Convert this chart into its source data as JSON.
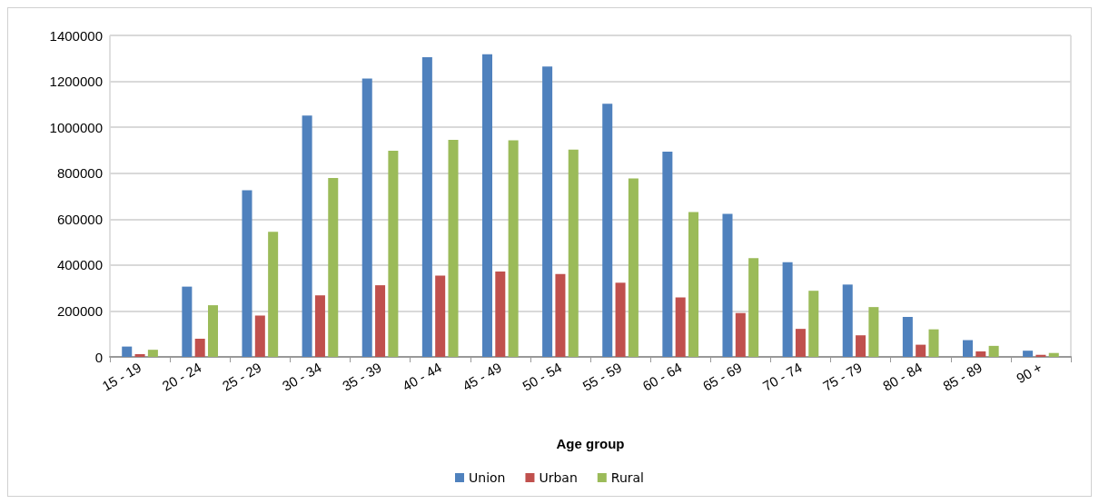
{
  "chart_data": {
    "type": "bar",
    "xlabel": "Age group",
    "categories": [
      "15 - 19",
      "20 - 24",
      "25 - 29",
      "30 - 34",
      "35 - 39",
      "40 - 44",
      "45 - 49",
      "50 - 54",
      "55 - 59",
      "60 - 64",
      "65 - 69",
      "70 - 74",
      "75 - 79",
      "80 - 84",
      "85 - 89",
      "90 +"
    ],
    "series": [
      {
        "name": "Union",
        "color": "#4f81bd",
        "values": [
          45000,
          306000,
          726000,
          1051000,
          1212000,
          1305000,
          1318000,
          1265000,
          1102000,
          894000,
          623000,
          412000,
          315000,
          174000,
          73000,
          27000
        ]
      },
      {
        "name": "Urban",
        "color": "#c0504d",
        "values": [
          12000,
          79000,
          180000,
          268000,
          312000,
          354000,
          372000,
          361000,
          323000,
          259000,
          191000,
          122000,
          94000,
          53000,
          24000,
          9000
        ]
      },
      {
        "name": "Rural",
        "color": "#9bbb59",
        "values": [
          31000,
          225000,
          545000,
          779000,
          898000,
          945000,
          943000,
          903000,
          777000,
          631000,
          430000,
          288000,
          217000,
          120000,
          48000,
          17000
        ]
      }
    ],
    "ylim": [
      0,
      1400000
    ],
    "yticks": [
      0,
      200000,
      400000,
      600000,
      800000,
      1000000,
      1200000,
      1400000
    ],
    "grid": "y",
    "legend": "bottom"
  }
}
